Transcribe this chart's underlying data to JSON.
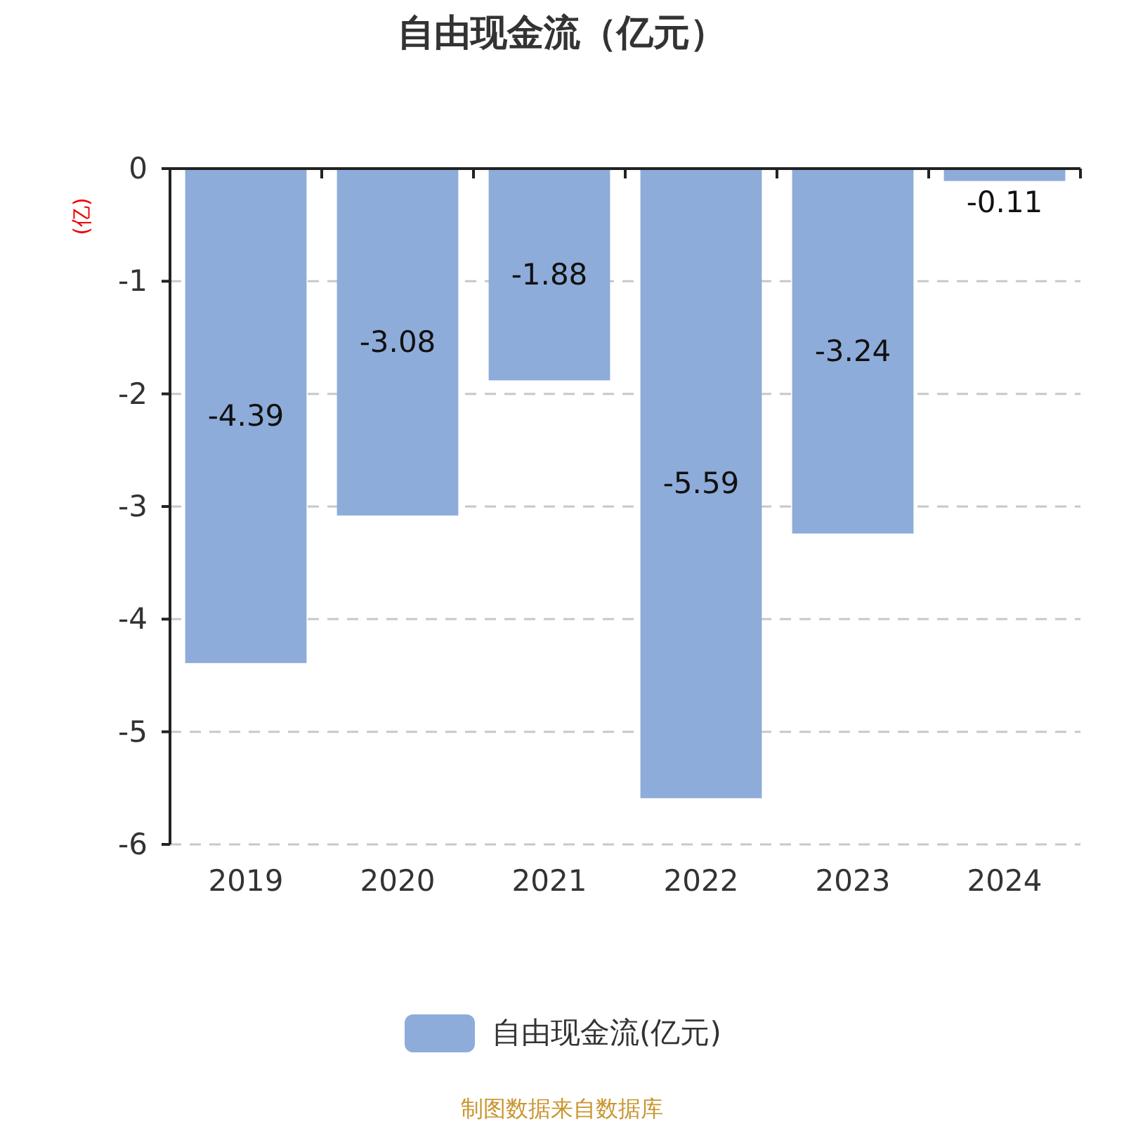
{
  "chart_data": {
    "type": "bar",
    "title": "自由现金流（亿元）",
    "ylabel": "(亿)",
    "categories": [
      "2019",
      "2020",
      "2021",
      "2022",
      "2023",
      "2024"
    ],
    "series": [
      {
        "name": "自由现金流(亿元)",
        "color": "#8eacda",
        "values": [
          -4.39,
          -3.08,
          -1.88,
          -5.59,
          -3.24,
          -0.11
        ]
      }
    ],
    "ylim": [
      -6,
      0
    ],
    "yticks": [
      -6,
      -5,
      -4,
      -3,
      -2,
      -1,
      0
    ],
    "grid": "y",
    "legend": "bottom",
    "data_labels": true,
    "annotations": [
      "制图数据来自数据库"
    ]
  }
}
